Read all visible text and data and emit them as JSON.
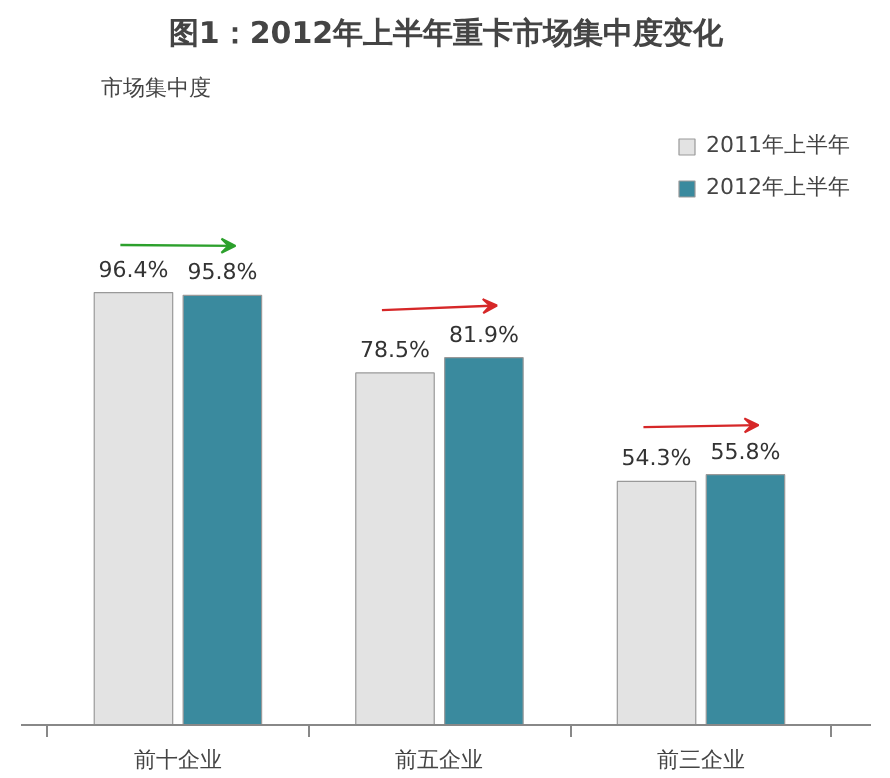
{
  "chart_data": {
    "type": "bar",
    "title": "图1：2012年上半年重卡市场集中度变化",
    "annotations": [
      "市场集中度"
    ],
    "categories": [
      "前十企业",
      "前五企业",
      "前三企业"
    ],
    "series": [
      {
        "name": "2011年上半年",
        "color": "#e3e3e3",
        "values": [
          96.4,
          78.5,
          54.3
        ],
        "value_labels": [
          "96.4%",
          "78.5%",
          "54.3%"
        ]
      },
      {
        "name": "2012年上半年",
        "color": "#3a8a9e",
        "values": [
          95.8,
          81.9,
          55.8
        ],
        "value_labels": [
          "95.8%",
          "81.9%",
          "55.8%"
        ]
      }
    ],
    "legend": "top right",
    "grid": false
  }
}
